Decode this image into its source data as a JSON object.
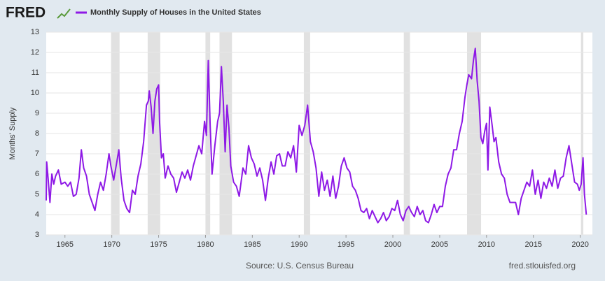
{
  "chart_data": {
    "type": "line",
    "logo": "FRED",
    "ylabel": "Months' Supply",
    "source": "Source: U.S. Census Bureau",
    "site": "fred.stlouisfed.org",
    "xlim": [
      1963,
      2021.3
    ],
    "xticks": [
      1965,
      1970,
      1975,
      1980,
      1985,
      1990,
      1995,
      2000,
      2005,
      2010,
      2015,
      2020
    ],
    "ylim": [
      3,
      13
    ],
    "yticks": [
      3,
      4,
      5,
      6,
      7,
      8,
      9,
      10,
      11,
      12,
      13
    ],
    "grid": true,
    "recession_color": "#e1e1e1",
    "recessions": [
      [
        1969.92,
        1970.83
      ],
      [
        1973.83,
        1975.17
      ],
      [
        1980.0,
        1980.5
      ],
      [
        1981.5,
        1982.83
      ],
      [
        1990.5,
        1991.17
      ],
      [
        2001.17,
        2001.83
      ],
      [
        2007.92,
        2009.42
      ],
      [
        2020.08,
        2020.33
      ]
    ],
    "x": [
      1963.0,
      1963.05,
      1963.2,
      1963.4,
      1963.6,
      1963.8,
      1964.0,
      1964.3,
      1964.6,
      1965.0,
      1965.3,
      1965.6,
      1965.9,
      1966.2,
      1966.5,
      1966.75,
      1967.0,
      1967.3,
      1967.6,
      1967.9,
      1968.2,
      1968.5,
      1968.8,
      1969.1,
      1969.4,
      1969.7,
      1969.9,
      1970.2,
      1970.5,
      1970.75,
      1971.0,
      1971.3,
      1971.6,
      1971.9,
      1972.2,
      1972.5,
      1972.8,
      1973.1,
      1973.4,
      1973.7,
      1973.9,
      1974.0,
      1974.2,
      1974.4,
      1974.6,
      1974.8,
      1975.0,
      1975.1,
      1975.3,
      1975.5,
      1975.7,
      1976.0,
      1976.3,
      1976.6,
      1976.9,
      1977.2,
      1977.5,
      1977.8,
      1978.1,
      1978.4,
      1978.7,
      1979.0,
      1979.3,
      1979.6,
      1979.9,
      1980.1,
      1980.3,
      1980.5,
      1980.7,
      1981.0,
      1981.3,
      1981.5,
      1981.7,
      1981.9,
      1982.1,
      1982.3,
      1982.5,
      1982.7,
      1983.0,
      1983.3,
      1983.6,
      1984.0,
      1984.3,
      1984.6,
      1984.9,
      1985.2,
      1985.5,
      1985.8,
      1986.1,
      1986.4,
      1986.7,
      1987.0,
      1987.3,
      1987.6,
      1987.9,
      1988.2,
      1988.5,
      1988.8,
      1989.1,
      1989.4,
      1989.7,
      1990.0,
      1990.3,
      1990.6,
      1990.9,
      1991.2,
      1991.5,
      1991.8,
      1992.1,
      1992.4,
      1992.7,
      1993.0,
      1993.3,
      1993.6,
      1993.9,
      1994.2,
      1994.5,
      1994.8,
      1995.1,
      1995.4,
      1995.7,
      1996.0,
      1996.3,
      1996.6,
      1996.9,
      1997.2,
      1997.5,
      1997.8,
      1998.1,
      1998.4,
      1998.7,
      1999.0,
      1999.3,
      1999.6,
      1999.9,
      2000.2,
      2000.5,
      2000.8,
      2001.1,
      2001.4,
      2001.7,
      2002.0,
      2002.3,
      2002.6,
      2002.9,
      2003.2,
      2003.5,
      2003.8,
      2004.1,
      2004.4,
      2004.7,
      2005.0,
      2005.3,
      2005.6,
      2005.9,
      2006.2,
      2006.5,
      2006.8,
      2007.1,
      2007.4,
      2007.7,
      2007.9,
      2008.1,
      2008.4,
      2008.6,
      2008.8,
      2009.0,
      2009.2,
      2009.4,
      2009.6,
      2009.8,
      2010.0,
      2010.15,
      2010.35,
      2010.6,
      2010.8,
      2011.0,
      2011.3,
      2011.6,
      2011.9,
      2012.2,
      2012.5,
      2012.8,
      2013.1,
      2013.4,
      2013.7,
      2014.0,
      2014.3,
      2014.6,
      2014.9,
      2015.2,
      2015.5,
      2015.8,
      2016.1,
      2016.4,
      2016.7,
      2017.0,
      2017.3,
      2017.6,
      2017.9,
      2018.2,
      2018.5,
      2018.8,
      2019.1,
      2019.4,
      2019.7,
      2019.9,
      2020.1,
      2020.3,
      2020.45,
      2020.65
    ],
    "series": [
      {
        "name": "Monthly Supply of Houses in the United States",
        "color": "#8e19e6",
        "values": [
          4.7,
          6.6,
          5.8,
          4.6,
          6.0,
          5.5,
          5.9,
          6.2,
          5.5,
          5.6,
          5.4,
          5.6,
          4.9,
          5.0,
          5.8,
          7.2,
          6.3,
          5.9,
          5.0,
          4.6,
          4.2,
          5.0,
          5.6,
          5.2,
          6.0,
          7.0,
          6.4,
          5.7,
          6.5,
          7.2,
          5.8,
          4.7,
          4.3,
          4.1,
          5.2,
          5.0,
          5.9,
          6.5,
          7.6,
          9.4,
          9.6,
          10.1,
          9.3,
          8.0,
          9.6,
          10.2,
          10.4,
          8.6,
          6.8,
          7.0,
          5.8,
          6.4,
          6.0,
          5.8,
          5.1,
          5.6,
          6.1,
          5.8,
          6.2,
          5.7,
          6.4,
          6.9,
          7.4,
          7.0,
          8.6,
          7.9,
          11.6,
          8.4,
          6.0,
          7.4,
          8.6,
          9.0,
          11.3,
          9.6,
          7.1,
          9.4,
          8.3,
          6.4,
          5.6,
          5.4,
          4.9,
          6.3,
          6.0,
          7.4,
          6.8,
          6.5,
          5.9,
          6.3,
          5.7,
          4.7,
          5.8,
          6.6,
          6.0,
          6.9,
          7.0,
          6.4,
          6.4,
          7.1,
          6.8,
          7.4,
          6.1,
          8.4,
          7.9,
          8.4,
          9.4,
          7.6,
          7.1,
          6.3,
          4.9,
          6.1,
          5.2,
          5.7,
          4.9,
          5.9,
          4.8,
          5.4,
          6.4,
          6.8,
          6.3,
          6.1,
          5.4,
          5.2,
          4.8,
          4.2,
          4.1,
          4.3,
          3.8,
          4.2,
          3.9,
          3.6,
          3.8,
          4.1,
          3.7,
          3.9,
          4.3,
          4.2,
          4.7,
          4.0,
          3.7,
          4.2,
          4.4,
          4.1,
          3.9,
          4.4,
          4.0,
          4.2,
          3.7,
          3.6,
          4.0,
          4.5,
          4.1,
          4.4,
          4.4,
          5.4,
          6.0,
          6.3,
          7.2,
          7.2,
          8.0,
          8.6,
          9.8,
          10.4,
          10.9,
          10.7,
          11.6,
          12.2,
          10.6,
          9.6,
          7.8,
          7.5,
          8.1,
          8.5,
          6.2,
          9.3,
          8.4,
          7.6,
          7.8,
          6.6,
          6.0,
          5.8,
          5.0,
          4.6,
          4.6,
          4.6,
          4.0,
          4.8,
          5.2,
          5.6,
          5.4,
          6.2,
          5.0,
          5.7,
          4.8,
          5.6,
          5.3,
          5.8,
          5.4,
          6.2,
          5.3,
          5.8,
          5.9,
          6.8,
          7.4,
          6.5,
          5.6,
          5.5,
          5.2,
          5.5,
          6.8,
          5.0,
          4.0
        ]
      }
    ]
  }
}
